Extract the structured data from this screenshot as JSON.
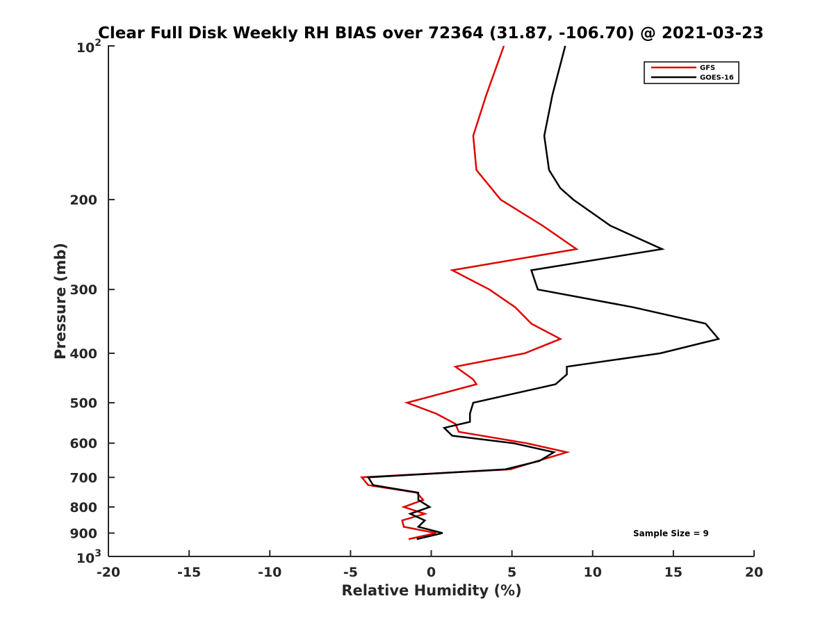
{
  "chart_data": {
    "type": "line",
    "title": "Clear Full Disk Weekly RH BIAS over 72364 (31.87, -106.70) @ 2021-03-23",
    "xlabel": "Relative Humidity (%)",
    "ylabel": "Pressure (mb)",
    "xlim": [
      -20,
      20
    ],
    "ylim": [
      1000,
      100
    ],
    "y_scale": "log",
    "y_reversed": true,
    "grid": false,
    "legend_position": "top-right",
    "x_ticks": [
      "-20",
      "-15",
      "-10",
      "-5",
      "0",
      "5",
      "10",
      "15",
      "20"
    ],
    "y_ticks": [
      {
        "value": 100,
        "base": "10",
        "exp": "2"
      },
      {
        "value": 200,
        "label": "200"
      },
      {
        "value": 300,
        "label": "300"
      },
      {
        "value": 400,
        "label": "400"
      },
      {
        "value": 500,
        "label": "500"
      },
      {
        "value": 600,
        "label": "600"
      },
      {
        "value": 700,
        "label": "700"
      },
      {
        "value": 800,
        "label": "800"
      },
      {
        "value": 900,
        "label": "900"
      },
      {
        "value": 1000,
        "base": "10",
        "exp": "3"
      }
    ],
    "annotation": "Sample Size = 9",
    "series": [
      {
        "name": "GFS",
        "color": "#e00000",
        "points": [
          [
            4.5,
            100
          ],
          [
            3.4,
            125
          ],
          [
            2.6,
            150
          ],
          [
            2.8,
            175
          ],
          [
            4.3,
            200
          ],
          [
            6.9,
            225
          ],
          [
            9.0,
            250
          ],
          [
            1.3,
            275
          ],
          [
            3.6,
            300
          ],
          [
            5.2,
            325
          ],
          [
            6.2,
            350
          ],
          [
            8.0,
            375
          ],
          [
            5.8,
            400
          ],
          [
            1.5,
            425
          ],
          [
            2.6,
            450
          ],
          [
            2.8,
            460
          ],
          [
            -1.5,
            500
          ],
          [
            0.3,
            525
          ],
          [
            1.5,
            550
          ],
          [
            1.7,
            570
          ],
          [
            5.9,
            600
          ],
          [
            8.4,
            625
          ],
          [
            6.6,
            650
          ],
          [
            4.9,
            675
          ],
          [
            -4.3,
            700
          ],
          [
            -3.9,
            725
          ],
          [
            -0.9,
            750
          ],
          [
            -0.5,
            775
          ],
          [
            -1.7,
            800
          ],
          [
            -0.4,
            825
          ],
          [
            -1.8,
            850
          ],
          [
            -1.7,
            875
          ],
          [
            0.3,
            900
          ],
          [
            -1.4,
            925
          ]
        ]
      },
      {
        "name": "GOES-16",
        "color": "#000000",
        "points": [
          [
            8.3,
            100
          ],
          [
            7.5,
            125
          ],
          [
            7.0,
            150
          ],
          [
            7.3,
            175
          ],
          [
            8.0,
            190
          ],
          [
            8.8,
            200
          ],
          [
            11.1,
            225
          ],
          [
            14.3,
            250
          ],
          [
            6.2,
            275
          ],
          [
            6.6,
            300
          ],
          [
            12.5,
            325
          ],
          [
            17.0,
            350
          ],
          [
            17.8,
            375
          ],
          [
            14.2,
            400
          ],
          [
            8.4,
            425
          ],
          [
            8.4,
            440
          ],
          [
            7.7,
            460
          ],
          [
            2.6,
            500
          ],
          [
            2.4,
            525
          ],
          [
            2.4,
            545
          ],
          [
            0.8,
            560
          ],
          [
            1.3,
            580
          ],
          [
            5.1,
            600
          ],
          [
            7.6,
            625
          ],
          [
            6.7,
            650
          ],
          [
            4.6,
            675
          ],
          [
            -3.9,
            700
          ],
          [
            -3.6,
            725
          ],
          [
            -0.8,
            750
          ],
          [
            -0.8,
            775
          ],
          [
            -0.1,
            800
          ],
          [
            -1.3,
            825
          ],
          [
            -0.4,
            850
          ],
          [
            -0.8,
            875
          ],
          [
            0.7,
            900
          ],
          [
            -0.9,
            925
          ]
        ]
      }
    ]
  }
}
